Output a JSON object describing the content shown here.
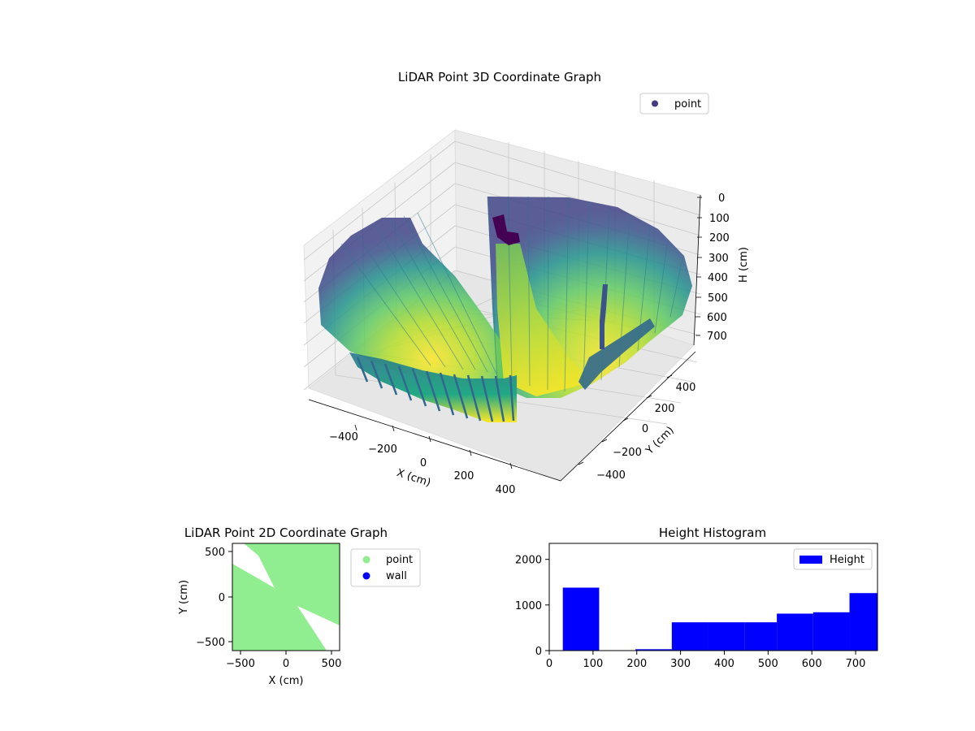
{
  "chart_data": [
    {
      "type": "scatter",
      "title": "LiDAR Point 3D Coordinate Graph",
      "xlabel": "X (cm)",
      "ylabel": "Y (cm)",
      "zlabel": "H (cm)",
      "x_ticks": [
        "−400",
        "−200",
        "0",
        "200",
        "400"
      ],
      "y_ticks": [
        "−400",
        "−200",
        "0",
        "200",
        "400"
      ],
      "z_ticks": [
        "0",
        "100",
        "200",
        "300",
        "400",
        "500",
        "600",
        "700"
      ],
      "xlim": [
        -580,
        580
      ],
      "ylim": [
        -580,
        580
      ],
      "zlim": [
        0,
        760
      ],
      "z_inverted": true,
      "colormap": "viridis",
      "legend": {
        "position": "top-right",
        "entries": [
          {
            "label": "point",
            "color": "#443983"
          }
        ]
      },
      "grid": true
    },
    {
      "type": "scatter",
      "title": "LiDAR Point 2D Coordinate Graph",
      "xlabel": "X (cm)",
      "ylabel": "Y (cm)",
      "x_ticks": [
        "−500",
        "0",
        "500"
      ],
      "y_ticks": [
        "500",
        "0",
        "−500"
      ],
      "xlim": [
        -580,
        580
      ],
      "ylim": [
        -580,
        580
      ],
      "series": [
        {
          "name": "point",
          "color": "#90ee90"
        },
        {
          "name": "wall",
          "color": "#0000ff"
        }
      ],
      "legend": {
        "position": "outside-right"
      },
      "grid": false
    },
    {
      "type": "bar",
      "title": "Height Histogram",
      "bins": [
        [
          31,
          114,
          1380
        ],
        [
          114,
          197,
          0
        ],
        [
          197,
          280,
          30
        ],
        [
          280,
          363,
          620
        ],
        [
          363,
          446,
          620
        ],
        [
          446,
          520,
          620
        ],
        [
          520,
          603,
          810
        ],
        [
          603,
          686,
          840
        ],
        [
          686,
          750,
          1260
        ]
      ],
      "x_ticks": [
        "0",
        "100",
        "200",
        "300",
        "400",
        "500",
        "600",
        "700"
      ],
      "y_ticks": [
        "0",
        "1000",
        "2000"
      ],
      "xlim": [
        0,
        750
      ],
      "ylim": [
        0,
        2350
      ],
      "color": "#0000ff",
      "legend": {
        "position": "top-right",
        "entries": [
          {
            "label": "Height",
            "color": "#0000ff"
          }
        ]
      },
      "grid": false
    }
  ]
}
